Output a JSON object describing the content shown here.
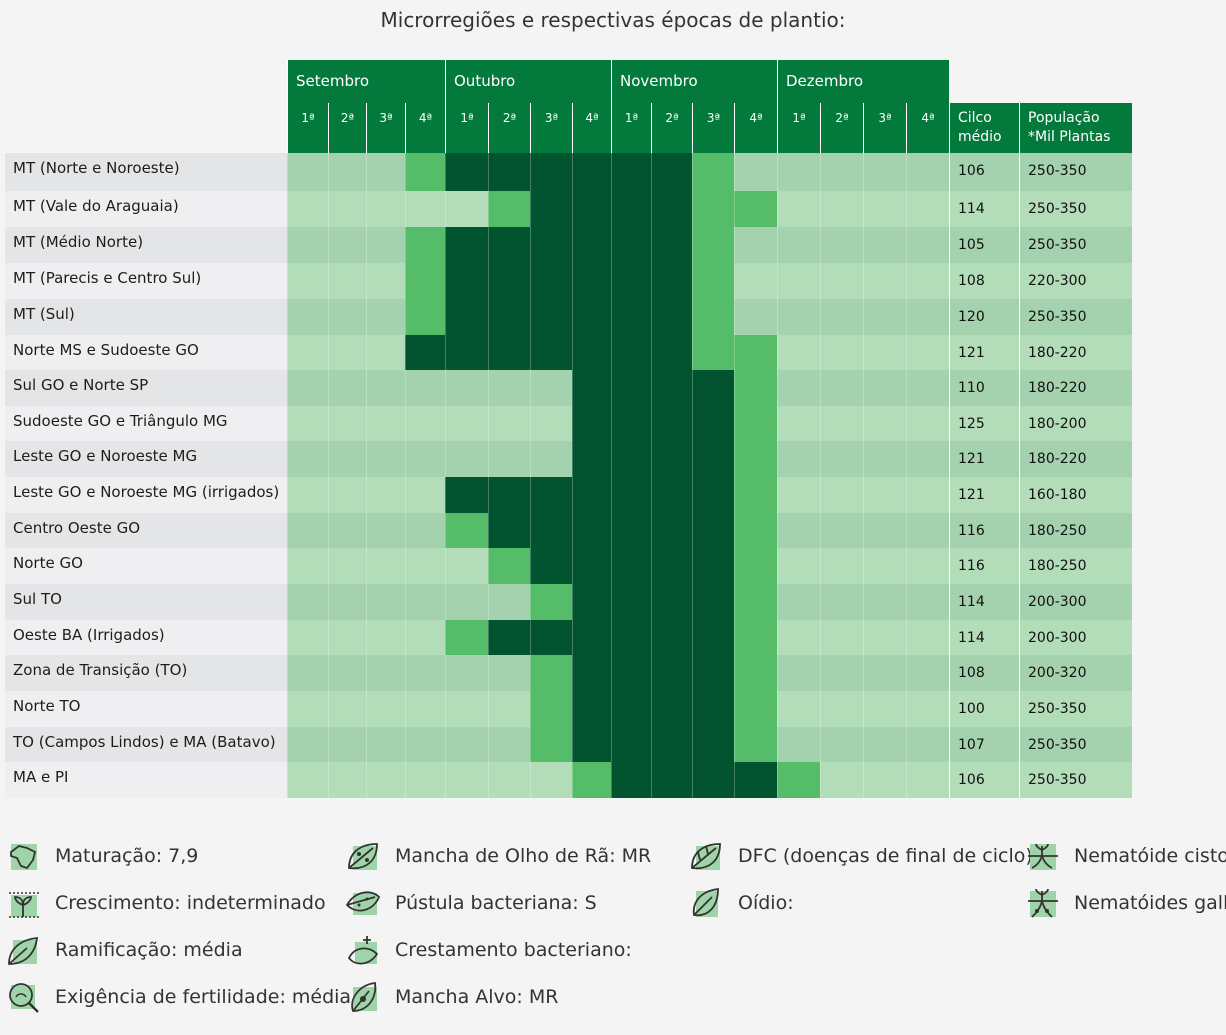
{
  "title": "Microrregiões e respectivas épocas de plantio:",
  "months": [
    "Setembro",
    "Outubro",
    "Novembro",
    "Dezembro"
  ],
  "weeks": [
    "1ª",
    "2ª",
    "3ª",
    "4ª",
    "1ª",
    "2ª",
    "3ª",
    "4ª",
    "1ª",
    "2ª",
    "3ª",
    "4ª",
    "1ª",
    "2ª",
    "3ª",
    "4ª"
  ],
  "col_ciclo": "Cilco\nmédio",
  "col_populacao": "População\n*Mil Plantas",
  "colors": {
    "header": "#037a3c",
    "dark": "#025430",
    "medium": "#55bc6a",
    "light": "#aed9b5",
    "label_a": "#e4e5e7",
    "label_b": "#efeff1"
  },
  "rows": [
    {
      "region": "MT (Norte e Noroeste)",
      "ciclo": "106",
      "populacao": "250-350",
      "levels": [
        0,
        0,
        0,
        2,
        3,
        3,
        3,
        3,
        3,
        3,
        2,
        0,
        0,
        0,
        0,
        0
      ]
    },
    {
      "region": "MT (Vale do Araguaia)",
      "ciclo": "114",
      "populacao": "250-350",
      "levels": [
        0,
        0,
        0,
        0,
        0,
        2,
        3,
        3,
        3,
        3,
        2,
        2,
        0,
        0,
        0,
        0
      ]
    },
    {
      "region": "MT (Médio Norte)",
      "ciclo": "105",
      "populacao": "250-350",
      "levels": [
        0,
        0,
        0,
        2,
        3,
        3,
        3,
        3,
        3,
        3,
        2,
        0,
        0,
        0,
        0,
        0
      ]
    },
    {
      "region": "MT (Parecis e Centro Sul)",
      "ciclo": "108",
      "populacao": "220-300",
      "levels": [
        0,
        0,
        0,
        2,
        3,
        3,
        3,
        3,
        3,
        3,
        2,
        0,
        0,
        0,
        0,
        0
      ]
    },
    {
      "region": "MT (Sul)",
      "ciclo": "120",
      "populacao": "250-350",
      "levels": [
        0,
        0,
        0,
        2,
        3,
        3,
        3,
        3,
        3,
        3,
        2,
        0,
        0,
        0,
        0,
        0
      ]
    },
    {
      "region": "Norte MS e Sudoeste GO",
      "ciclo": "121",
      "populacao": "180-220",
      "levels": [
        0,
        0,
        0,
        3,
        3,
        3,
        3,
        3,
        3,
        3,
        2,
        2,
        0,
        0,
        0,
        0
      ]
    },
    {
      "region": "Sul GO e Norte SP",
      "ciclo": "110",
      "populacao": "180-220",
      "levels": [
        0,
        0,
        0,
        0,
        0,
        0,
        0,
        3,
        3,
        3,
        3,
        2,
        0,
        0,
        0,
        0
      ]
    },
    {
      "region": "Sudoeste GO e Triângulo MG",
      "ciclo": "125",
      "populacao": "180-200",
      "levels": [
        0,
        0,
        0,
        0,
        0,
        0,
        0,
        3,
        3,
        3,
        3,
        2,
        0,
        0,
        0,
        0
      ]
    },
    {
      "region": "Leste GO e Noroeste MG",
      "ciclo": "121",
      "populacao": "180-220",
      "levels": [
        0,
        0,
        0,
        0,
        0,
        0,
        0,
        3,
        3,
        3,
        3,
        2,
        0,
        0,
        0,
        0
      ]
    },
    {
      "region": "Leste GO e Noroeste MG (irrigados)",
      "ciclo": "121",
      "populacao": "160-180",
      "levels": [
        0,
        0,
        0,
        0,
        3,
        3,
        3,
        3,
        3,
        3,
        3,
        2,
        0,
        0,
        0,
        0
      ]
    },
    {
      "region": "Centro Oeste GO",
      "ciclo": "116",
      "populacao": "180-250",
      "levels": [
        0,
        0,
        0,
        0,
        2,
        3,
        3,
        3,
        3,
        3,
        3,
        2,
        0,
        0,
        0,
        0
      ]
    },
    {
      "region": "Norte GO",
      "ciclo": "116",
      "populacao": "180-250",
      "levels": [
        0,
        0,
        0,
        0,
        0,
        2,
        3,
        3,
        3,
        3,
        3,
        2,
        0,
        0,
        0,
        0
      ]
    },
    {
      "region": "Sul TO",
      "ciclo": "114",
      "populacao": "200-300",
      "levels": [
        0,
        0,
        0,
        0,
        0,
        0,
        2,
        3,
        3,
        3,
        3,
        2,
        0,
        0,
        0,
        0
      ]
    },
    {
      "region": "Oeste BA (Irrigados)",
      "ciclo": "114",
      "populacao": "200-300",
      "levels": [
        0,
        0,
        0,
        0,
        2,
        3,
        3,
        3,
        3,
        3,
        3,
        2,
        0,
        0,
        0,
        0
      ]
    },
    {
      "region": "Zona de Transição (TO)",
      "ciclo": "108",
      "populacao": "200-320",
      "levels": [
        0,
        0,
        0,
        0,
        0,
        0,
        2,
        3,
        3,
        3,
        3,
        2,
        0,
        0,
        0,
        0
      ]
    },
    {
      "region": "Norte TO",
      "ciclo": "100",
      "populacao": "250-350",
      "levels": [
        0,
        0,
        0,
        0,
        0,
        0,
        2,
        3,
        3,
        3,
        3,
        2,
        0,
        0,
        0,
        0
      ]
    },
    {
      "region": "TO (Campos Lindos) e MA (Batavo)",
      "ciclo": "107",
      "populacao": "250-350",
      "levels": [
        0,
        0,
        0,
        0,
        0,
        0,
        2,
        3,
        3,
        3,
        3,
        2,
        0,
        0,
        0,
        0
      ]
    },
    {
      "region": "MA e PI",
      "ciclo": "106",
      "populacao": "250-350",
      "levels": [
        0,
        0,
        0,
        0,
        0,
        0,
        0,
        2,
        3,
        3,
        3,
        3,
        2,
        0,
        0,
        0
      ]
    }
  ],
  "legend": [
    {
      "icon": "brazil-map-icon",
      "text": "Maturação: 7,9"
    },
    {
      "icon": "seedling-growth-icon",
      "text": "Crescimento: indeterminado"
    },
    {
      "icon": "leaf-branch-icon",
      "text": "Ramificação: média"
    },
    {
      "icon": "soil-magnifier-icon",
      "text": "Exigência de fertilidade: média"
    },
    {
      "icon": "spotted-leaf-icon",
      "text": "Mancha de Olho de Rã: MR"
    },
    {
      "icon": "pustule-leaf-icon",
      "text": "Pústula bacteriana: S"
    },
    {
      "icon": "blight-leaf-icon",
      "text": "Crestamento bacteriano:"
    },
    {
      "icon": "target-leaf-icon",
      "text": "Mancha Alvo: MR"
    },
    {
      "icon": "late-cycle-leaf-icon",
      "text": "DFC (doenças de final de ciclo):"
    },
    {
      "icon": "powdery-leaf-icon",
      "text": "Oídio:"
    },
    {
      "icon": "cyst-nematode-icon",
      "text": "Nematóide cisto:"
    },
    {
      "icon": "gall-nematode-icon",
      "text": "Nematóides galha:"
    }
  ]
}
